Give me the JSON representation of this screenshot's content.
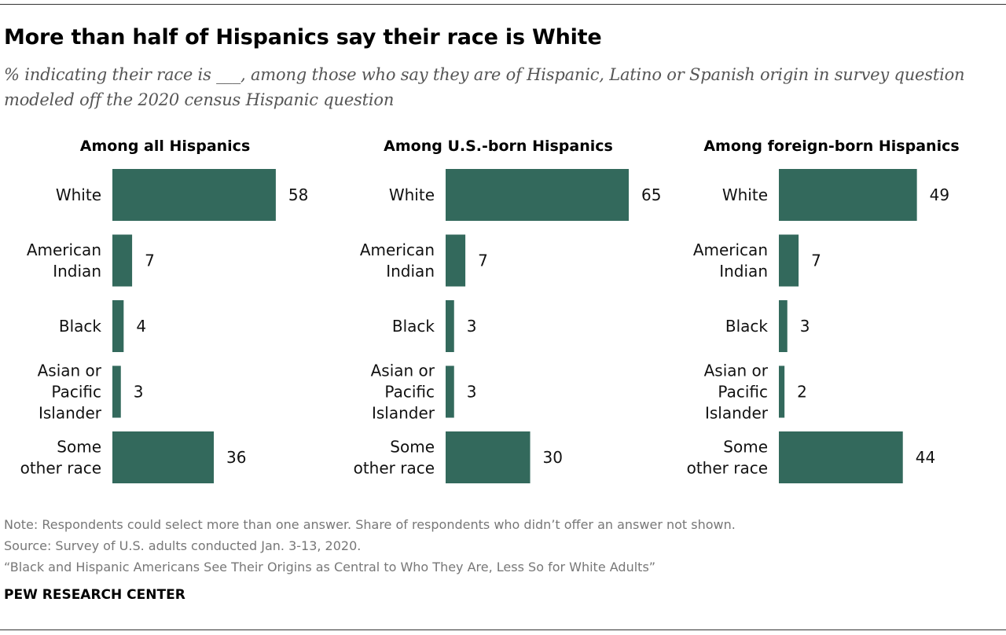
{
  "header": {
    "title": "More than half of Hispanics say their race is White",
    "subtitle": "% indicating their race is ___, among those who say they are of Hispanic, Latino or Spanish origin in survey question modeled off the 2020 census Hispanic question"
  },
  "colors": {
    "bar": "#33695c",
    "rule": "#333333",
    "note": "#777777"
  },
  "chart_data": [
    {
      "type": "bar",
      "orientation": "horizontal",
      "title": "Among all Hispanics",
      "categories": [
        "White",
        "American Indian",
        "Black",
        "Asian or Pacific Islander",
        "Some other race"
      ],
      "category_lines": [
        [
          "White"
        ],
        [
          "American",
          "Indian"
        ],
        [
          "Black"
        ],
        [
          "Asian or",
          "Pacific",
          "Islander"
        ],
        [
          "Some",
          "other race"
        ]
      ],
      "values": [
        58,
        7,
        4,
        3,
        36
      ],
      "xlim": [
        0,
        65
      ]
    },
    {
      "type": "bar",
      "orientation": "horizontal",
      "title": "Among U.S.-born Hispanics",
      "categories": [
        "White",
        "American Indian",
        "Black",
        "Asian or Pacific Islander",
        "Some other race"
      ],
      "category_lines": [
        [
          "White"
        ],
        [
          "American",
          "Indian"
        ],
        [
          "Black"
        ],
        [
          "Asian or",
          "Pacific",
          "Islander"
        ],
        [
          "Some",
          "other race"
        ]
      ],
      "values": [
        65,
        7,
        3,
        3,
        30
      ],
      "xlim": [
        0,
        65
      ]
    },
    {
      "type": "bar",
      "orientation": "horizontal",
      "title": "Among foreign-born Hispanics",
      "categories": [
        "White",
        "American Indian",
        "Black",
        "Asian or Pacific Islander",
        "Some other race"
      ],
      "category_lines": [
        [
          "White"
        ],
        [
          "American",
          "Indian"
        ],
        [
          "Black"
        ],
        [
          "Asian or",
          "Pacific",
          "Islander"
        ],
        [
          "Some",
          "other race"
        ]
      ],
      "values": [
        49,
        7,
        3,
        2,
        44
      ],
      "xlim": [
        0,
        65
      ]
    }
  ],
  "footer": {
    "note": "Note: Respondents could select more than one answer. Share of respondents who didn’t offer an answer not shown.",
    "source": "Source: Survey of U.S. adults conducted Jan. 3-13, 2020.",
    "report": "“Black and Hispanic Americans See Their Origins as Central to Who They Are, Less So for White Adults”",
    "brand": "PEW RESEARCH CENTER"
  }
}
